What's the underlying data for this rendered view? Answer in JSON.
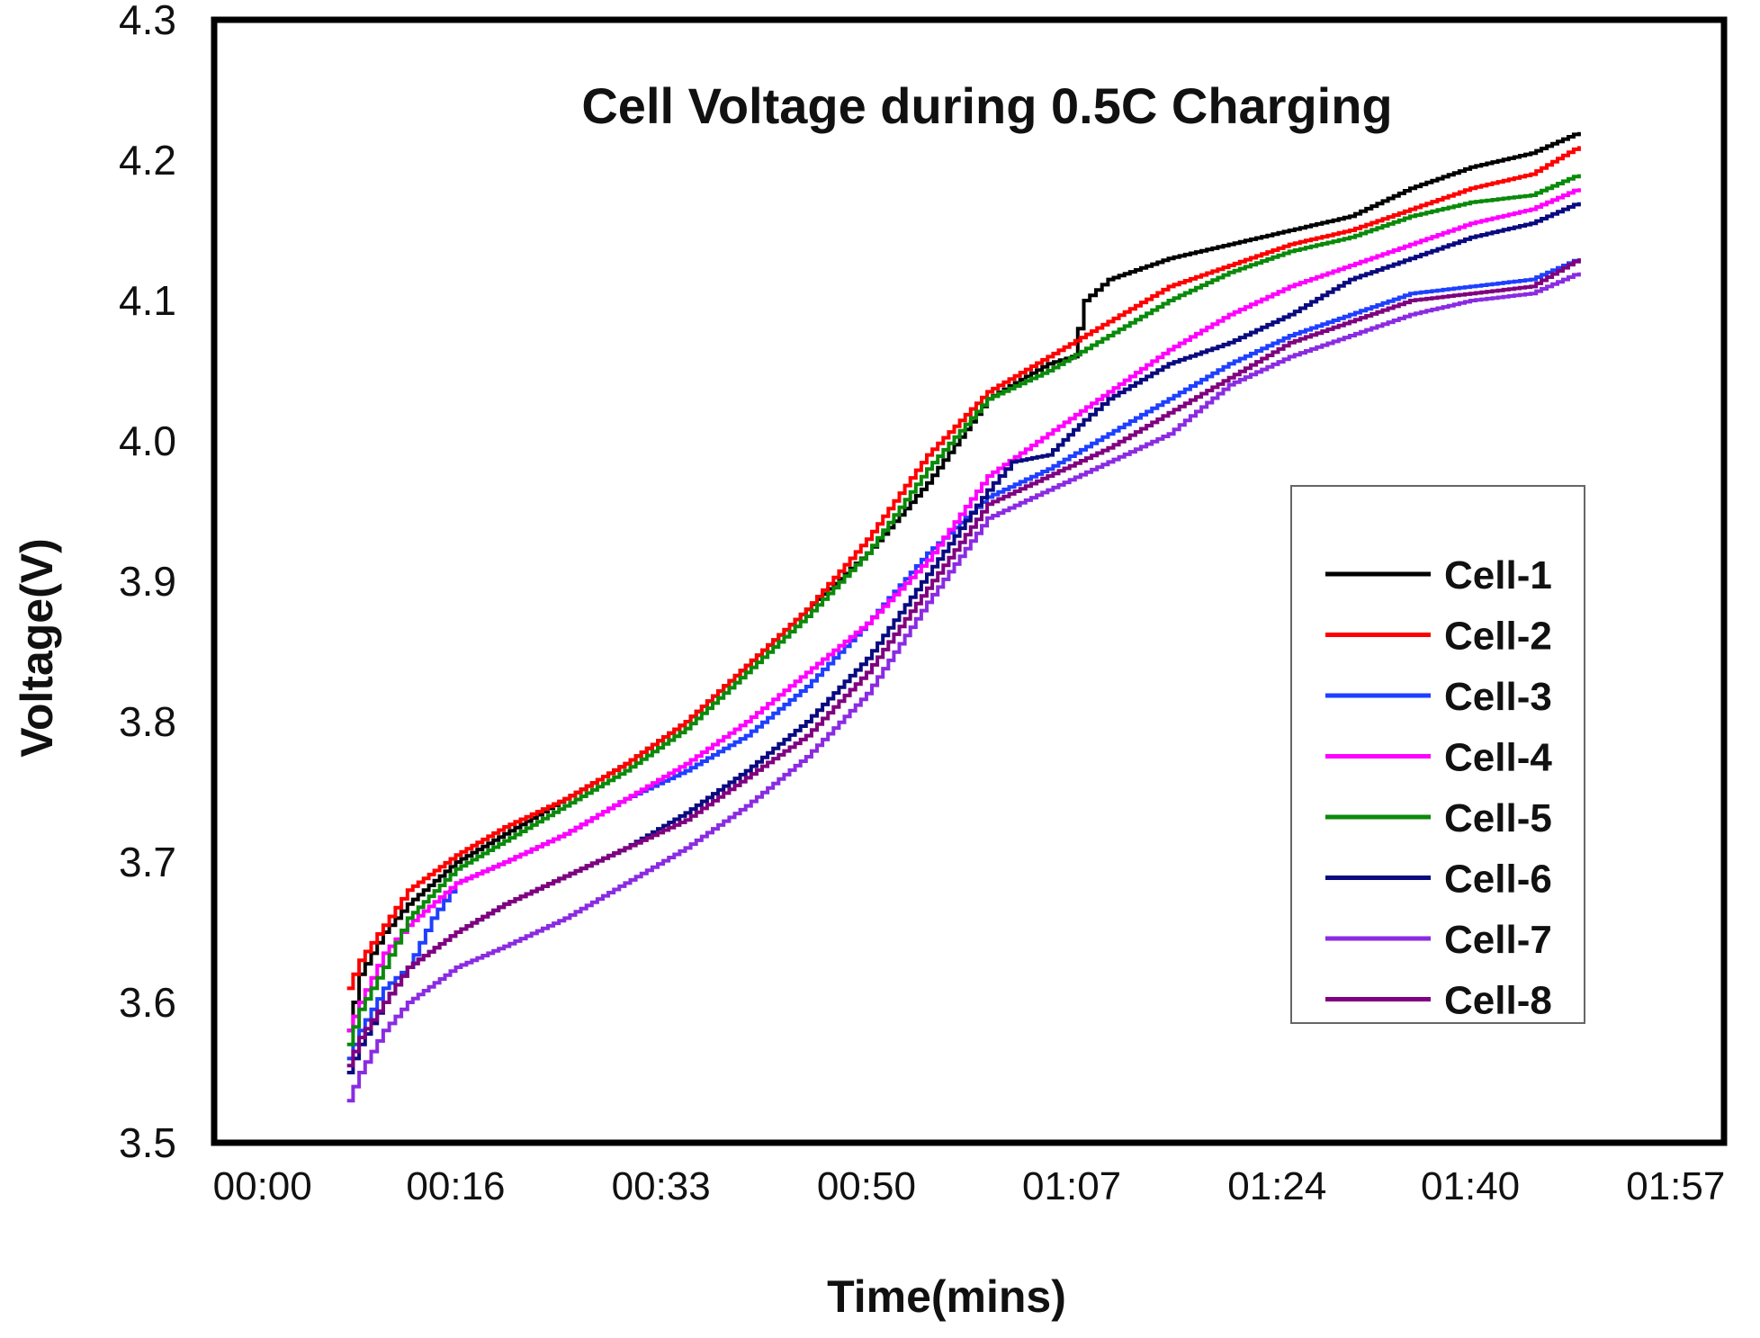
{
  "chart_data": {
    "type": "line",
    "title": "Cell Voltage during 0.5C Charging",
    "xlabel": "Time(mins)",
    "ylabel": "Voltage(V)",
    "xlim": [
      -4,
      121
    ],
    "ylim": [
      3.5,
      4.3
    ],
    "x_ticks": [
      {
        "value": 0,
        "label": "00:00"
      },
      {
        "value": 16,
        "label": "00:16"
      },
      {
        "value": 33,
        "label": "00:33"
      },
      {
        "value": 50,
        "label": "00:50"
      },
      {
        "value": 67,
        "label": "01:07"
      },
      {
        "value": 84,
        "label": "01:24"
      },
      {
        "value": 100,
        "label": "01:40"
      },
      {
        "value": 117,
        "label": "01:57"
      }
    ],
    "y_ticks": [
      {
        "value": 3.5,
        "label": "3.5"
      },
      {
        "value": 3.6,
        "label": "3.6"
      },
      {
        "value": 3.7,
        "label": "3.7"
      },
      {
        "value": 3.8,
        "label": "3.8"
      },
      {
        "value": 3.9,
        "label": "3.9"
      },
      {
        "value": 4.0,
        "label": "4.0"
      },
      {
        "value": 4.1,
        "label": "4.1"
      },
      {
        "value": 4.2,
        "label": "4.2"
      },
      {
        "value": 4.3,
        "label": "4.3"
      }
    ],
    "grid": false,
    "legend_position": "right",
    "series": [
      {
        "name": "Cell-1",
        "color": "#000000",
        "x": [
          7,
          8,
          10,
          12,
          16,
          20,
          25,
          30,
          35,
          40,
          45,
          50,
          55,
          60,
          65,
          67,
          68,
          70,
          75,
          80,
          85,
          90,
          95,
          100,
          105,
          109
        ],
        "y": [
          3.58,
          3.62,
          3.65,
          3.67,
          3.7,
          3.72,
          3.745,
          3.77,
          3.8,
          3.84,
          3.88,
          3.92,
          3.97,
          4.03,
          4.055,
          4.06,
          4.1,
          4.115,
          4.13,
          4.14,
          4.15,
          4.16,
          4.18,
          4.195,
          4.205,
          4.22
        ]
      },
      {
        "name": "Cell-2",
        "color": "#ff0000",
        "x": [
          7,
          8,
          10,
          12,
          16,
          20,
          25,
          30,
          35,
          40,
          45,
          50,
          55,
          60,
          65,
          70,
          75,
          80,
          85,
          90,
          95,
          100,
          105,
          109
        ],
        "y": [
          3.61,
          3.63,
          3.655,
          3.68,
          3.705,
          3.725,
          3.745,
          3.77,
          3.8,
          3.84,
          3.88,
          3.93,
          3.99,
          4.035,
          4.06,
          4.085,
          4.11,
          4.125,
          4.14,
          4.15,
          4.165,
          4.18,
          4.19,
          4.21
        ]
      },
      {
        "name": "Cell-3",
        "color": "#1f3fff",
        "x": [
          7,
          8,
          10,
          12,
          14,
          16,
          20,
          25,
          30,
          35,
          40,
          45,
          50,
          55,
          60,
          65,
          70,
          75,
          80,
          85,
          90,
          95,
          100,
          105,
          109
        ],
        "y": [
          3.56,
          3.58,
          3.61,
          3.625,
          3.66,
          3.685,
          3.7,
          3.72,
          3.745,
          3.765,
          3.79,
          3.825,
          3.87,
          3.92,
          3.96,
          3.98,
          4.005,
          4.03,
          4.055,
          4.075,
          4.09,
          4.105,
          4.11,
          4.115,
          4.13
        ]
      },
      {
        "name": "Cell-4",
        "color": "#ff00ff",
        "x": [
          7,
          8,
          10,
          12,
          16,
          20,
          25,
          30,
          35,
          40,
          45,
          50,
          55,
          60,
          65,
          70,
          75,
          80,
          85,
          90,
          95,
          100,
          105,
          109
        ],
        "y": [
          3.58,
          3.6,
          3.635,
          3.655,
          3.685,
          3.7,
          3.72,
          3.745,
          3.77,
          3.8,
          3.835,
          3.87,
          3.915,
          3.975,
          4.005,
          4.035,
          4.065,
          4.09,
          4.11,
          4.125,
          4.14,
          4.155,
          4.165,
          4.18
        ]
      },
      {
        "name": "Cell-5",
        "color": "#0a8a0a",
        "x": [
          7,
          8,
          10,
          12,
          16,
          20,
          25,
          30,
          35,
          40,
          45,
          50,
          55,
          60,
          65,
          70,
          75,
          80,
          85,
          90,
          95,
          100,
          105,
          109
        ],
        "y": [
          3.57,
          3.595,
          3.625,
          3.66,
          3.695,
          3.715,
          3.74,
          3.765,
          3.795,
          3.835,
          3.875,
          3.92,
          3.98,
          4.03,
          4.05,
          4.075,
          4.1,
          4.12,
          4.135,
          4.145,
          4.16,
          4.17,
          4.175,
          4.19
        ]
      },
      {
        "name": "Cell-6",
        "color": "#0a0a80",
        "x": [
          7,
          8,
          10,
          12,
          16,
          20,
          25,
          30,
          35,
          40,
          45,
          50,
          55,
          60,
          62,
          65,
          68,
          70,
          75,
          80,
          85,
          90,
          95,
          100,
          105,
          109
        ],
        "y": [
          3.55,
          3.57,
          3.6,
          3.625,
          3.65,
          3.67,
          3.69,
          3.71,
          3.735,
          3.765,
          3.8,
          3.845,
          3.905,
          3.965,
          3.985,
          3.99,
          4.015,
          4.03,
          4.055,
          4.07,
          4.09,
          4.115,
          4.13,
          4.145,
          4.155,
          4.17
        ]
      },
      {
        "name": "Cell-7",
        "color": "#8a2be2",
        "x": [
          7,
          8,
          10,
          12,
          16,
          20,
          25,
          30,
          35,
          40,
          45,
          50,
          55,
          60,
          65,
          70,
          75,
          80,
          85,
          90,
          95,
          100,
          105,
          109
        ],
        "y": [
          3.53,
          3.55,
          3.58,
          3.6,
          3.625,
          3.64,
          3.66,
          3.685,
          3.71,
          3.74,
          3.775,
          3.82,
          3.885,
          3.945,
          3.965,
          3.985,
          4.005,
          4.04,
          4.06,
          4.075,
          4.09,
          4.1,
          4.105,
          4.12
        ]
      },
      {
        "name": "Cell-8",
        "color": "#800080",
        "x": [
          7,
          8,
          10,
          12,
          16,
          20,
          25,
          30,
          35,
          40,
          45,
          50,
          55,
          60,
          65,
          70,
          75,
          80,
          85,
          90,
          95,
          100,
          105,
          109
        ],
        "y": [
          3.555,
          3.575,
          3.6,
          3.625,
          3.65,
          3.67,
          3.69,
          3.71,
          3.73,
          3.76,
          3.79,
          3.835,
          3.895,
          3.955,
          3.975,
          3.995,
          4.02,
          4.045,
          4.07,
          4.085,
          4.1,
          4.105,
          4.11,
          4.13
        ]
      }
    ]
  }
}
